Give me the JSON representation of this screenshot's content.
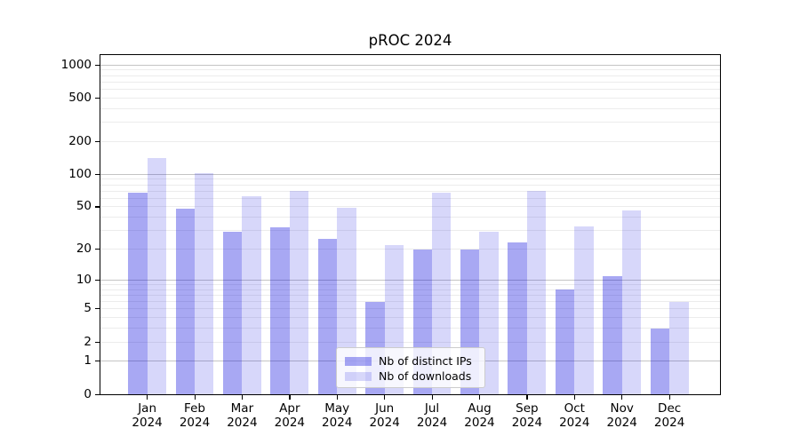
{
  "figure": {
    "background": "#ffffff"
  },
  "chart_data": {
    "type": "bar",
    "title": "pROC 2024",
    "scale": "log1p",
    "xlabel": "",
    "ylabel": "",
    "categories": [
      "Jan",
      "Feb",
      "Mar",
      "Apr",
      "May",
      "Jun",
      "Jul",
      "Aug",
      "Sep",
      "Oct",
      "Nov",
      "Dec"
    ],
    "category_year": "2024",
    "series": [
      {
        "name": "Nb of distinct IPs",
        "color": "rgba(0,0,220,0.34)",
        "values": [
          67,
          48,
          29,
          32,
          25,
          6,
          20,
          20,
          23,
          8,
          11,
          3
        ]
      },
      {
        "name": "Nb of downloads",
        "color": "rgba(0,0,220,0.155)",
        "values": [
          140,
          103,
          63,
          70,
          49,
          22,
          67,
          29,
          70,
          33,
          46,
          6
        ]
      }
    ],
    "y_ticks": [
      0,
      1,
      2,
      5,
      10,
      20,
      50,
      100,
      200,
      500,
      1000
    ],
    "ylim": [
      0,
      1230
    ],
    "grid": true,
    "legend_position": "lower center",
    "colors": {
      "major_grid": "#c4c4c4",
      "minor_grid": "#ececec",
      "axis": "#000000"
    }
  }
}
